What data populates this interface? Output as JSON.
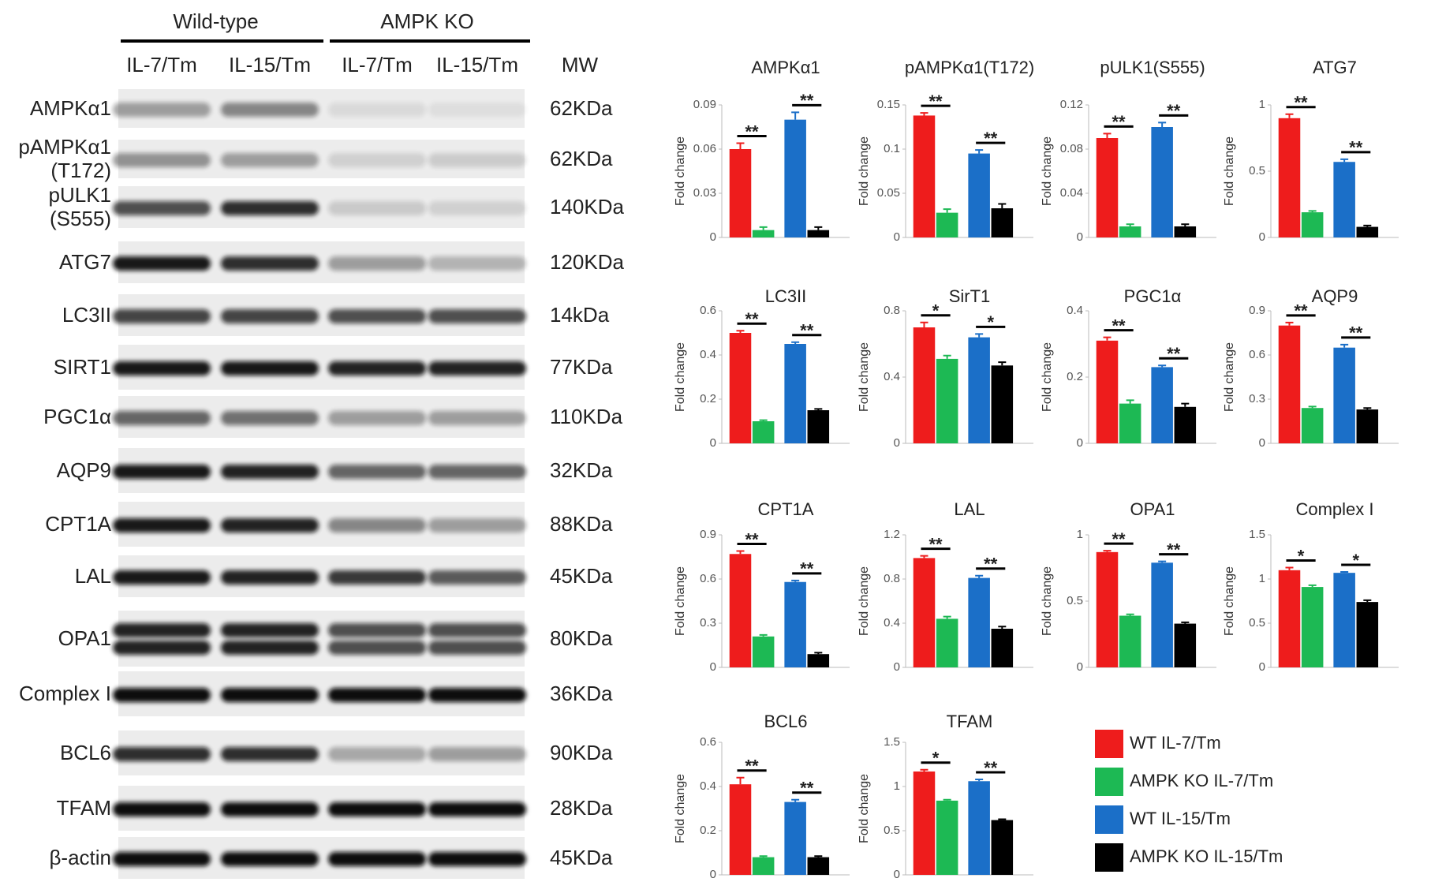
{
  "blot": {
    "groups": [
      "Wild-type",
      "AMPK KO"
    ],
    "lanes": [
      "IL-7/Tm",
      "IL-15/Tm",
      "IL-7/Tm",
      "IL-15/Tm"
    ],
    "mw_header": "MW",
    "rows": [
      {
        "label": [
          "AMPKα1"
        ],
        "mw": "62KDa"
      },
      {
        "label": [
          "pAMPKα1",
          "(T172)"
        ],
        "mw": "62KDa"
      },
      {
        "label": [
          "pULK1",
          "(S555)"
        ],
        "mw": "140KDa"
      },
      {
        "label": [
          "ATG7"
        ],
        "mw": "120KDa"
      },
      {
        "label": [
          "LC3II"
        ],
        "mw": "14kDa"
      },
      {
        "label": [
          "SIRT1"
        ],
        "mw": "77KDa"
      },
      {
        "label": [
          "PGC1α"
        ],
        "mw": "110KDa"
      },
      {
        "label": [
          "AQP9"
        ],
        "mw": "32KDa"
      },
      {
        "label": [
          "CPT1A"
        ],
        "mw": "88KDa"
      },
      {
        "label": [
          "LAL"
        ],
        "mw": "45KDa"
      },
      {
        "label": [
          "OPA1"
        ],
        "mw": "80KDa"
      },
      {
        "label": [
          "Complex I"
        ],
        "mw": "36KDa"
      },
      {
        "label": [
          "BCL6"
        ],
        "mw": "90KDa"
      },
      {
        "label": [
          "TFAM"
        ],
        "mw": "28KDa"
      },
      {
        "label": [
          "β-actin"
        ],
        "mw": "45KDa"
      }
    ]
  },
  "legend": {
    "items": [
      {
        "name": "WT IL-7/Tm",
        "color": "#ee1c1c"
      },
      {
        "name": "AMPK KO IL-7/Tm",
        "color": "#1db954"
      },
      {
        "name": "WT IL-15/Tm",
        "color": "#1b6fc8"
      },
      {
        "name": "AMPK KO IL-15/Tm",
        "color": "#000000"
      }
    ]
  },
  "chart_data": [
    {
      "type": "bar",
      "title": "AMPKα1",
      "ylabel": "Fold change",
      "ylim": [
        0,
        0.09
      ],
      "yticks": [
        0,
        0.03,
        0.06,
        0.09
      ],
      "values": [
        0.06,
        0.005,
        0.08,
        0.005
      ],
      "errors": [
        0.004,
        0.002,
        0.005,
        0.002
      ],
      "significance": [
        "**",
        "**"
      ]
    },
    {
      "type": "bar",
      "title": "pAMPKα1(T172)",
      "ylabel": "Fold change",
      "ylim": [
        0,
        0.15
      ],
      "yticks": [
        0,
        0.05,
        0.1,
        0.15
      ],
      "values": [
        0.138,
        0.028,
        0.095,
        0.033
      ],
      "errors": [
        0.003,
        0.004,
        0.004,
        0.005
      ],
      "significance": [
        "**",
        "**"
      ]
    },
    {
      "type": "bar",
      "title": "pULK1(S555)",
      "ylabel": "Fold change",
      "ylim": [
        0,
        0.12
      ],
      "yticks": [
        0,
        0.04,
        0.08,
        0.12
      ],
      "values": [
        0.09,
        0.01,
        0.1,
        0.01
      ],
      "errors": [
        0.004,
        0.002,
        0.004,
        0.002
      ],
      "significance": [
        "**",
        "**"
      ]
    },
    {
      "type": "bar",
      "title": "ATG7",
      "ylabel": "Fold change",
      "ylim": [
        0,
        1
      ],
      "yticks": [
        0,
        0.5,
        1
      ],
      "values": [
        0.9,
        0.19,
        0.57,
        0.08
      ],
      "errors": [
        0.03,
        0.01,
        0.02,
        0.01
      ],
      "significance": [
        "**",
        "**"
      ]
    },
    {
      "type": "bar",
      "title": "LC3II",
      "ylabel": "Fold change",
      "ylim": [
        0,
        0.6
      ],
      "yticks": [
        0,
        0.2,
        0.4,
        0.6
      ],
      "values": [
        0.5,
        0.1,
        0.45,
        0.15
      ],
      "errors": [
        0.01,
        0.005,
        0.008,
        0.006
      ],
      "significance": [
        "**",
        "**"
      ]
    },
    {
      "type": "bar",
      "title": "SirT1",
      "ylabel": "Fold change",
      "ylim": [
        0,
        0.8
      ],
      "yticks": [
        0,
        0.4,
        0.8
      ],
      "values": [
        0.7,
        0.51,
        0.64,
        0.47
      ],
      "errors": [
        0.03,
        0.02,
        0.02,
        0.02
      ],
      "significance": [
        "*",
        "*"
      ]
    },
    {
      "type": "bar",
      "title": "PGC1α",
      "ylabel": "Fold change",
      "ylim": [
        0,
        0.4
      ],
      "yticks": [
        0,
        0.2,
        0.4
      ],
      "values": [
        0.31,
        0.12,
        0.23,
        0.11
      ],
      "errors": [
        0.01,
        0.01,
        0.005,
        0.01
      ],
      "significance": [
        "**",
        "**"
      ]
    },
    {
      "type": "bar",
      "title": "AQP9",
      "ylabel": "Fold change",
      "ylim": [
        0,
        0.9
      ],
      "yticks": [
        0,
        0.3,
        0.6,
        0.9
      ],
      "values": [
        0.8,
        0.24,
        0.65,
        0.23
      ],
      "errors": [
        0.02,
        0.01,
        0.02,
        0.01
      ],
      "significance": [
        "**",
        "**"
      ]
    },
    {
      "type": "bar",
      "title": "CPT1A",
      "ylabel": "Fold change",
      "ylim": [
        0,
        0.9
      ],
      "yticks": [
        0,
        0.3,
        0.6,
        0.9
      ],
      "values": [
        0.77,
        0.21,
        0.58,
        0.09
      ],
      "errors": [
        0.02,
        0.01,
        0.01,
        0.01
      ],
      "significance": [
        "**",
        "**"
      ]
    },
    {
      "type": "bar",
      "title": "LAL",
      "ylabel": "Fold change",
      "ylim": [
        0,
        1.2
      ],
      "yticks": [
        0,
        0.4,
        0.8,
        1.2
      ],
      "values": [
        0.99,
        0.44,
        0.81,
        0.35
      ],
      "errors": [
        0.02,
        0.02,
        0.02,
        0.02
      ],
      "significance": [
        "**",
        "**"
      ]
    },
    {
      "type": "bar",
      "title": "OPA1",
      "ylabel": "Fold change",
      "ylim": [
        0,
        1
      ],
      "yticks": [
        0,
        0.5,
        1
      ],
      "values": [
        0.87,
        0.39,
        0.79,
        0.33
      ],
      "errors": [
        0.01,
        0.01,
        0.01,
        0.01
      ],
      "significance": [
        "**",
        "**"
      ]
    },
    {
      "type": "bar",
      "title": "Complex I",
      "ylabel": "Fold change",
      "ylim": [
        0,
        1.5
      ],
      "yticks": [
        0,
        0.5,
        1,
        1.5
      ],
      "values": [
        1.1,
        0.91,
        1.07,
        0.74
      ],
      "errors": [
        0.03,
        0.02,
        0.01,
        0.02
      ],
      "significance": [
        "*",
        "*"
      ]
    },
    {
      "type": "bar",
      "title": "BCL6",
      "ylabel": "Fold change",
      "ylim": [
        0,
        0.6
      ],
      "yticks": [
        0,
        0.2,
        0.4,
        0.6
      ],
      "values": [
        0.41,
        0.08,
        0.33,
        0.08
      ],
      "errors": [
        0.03,
        0.005,
        0.01,
        0.005
      ],
      "significance": [
        "**",
        "**"
      ]
    },
    {
      "type": "bar",
      "title": "TFAM",
      "ylabel": "Fold change",
      "ylim": [
        0,
        1.5
      ],
      "yticks": [
        0,
        0.5,
        1,
        1.5
      ],
      "values": [
        1.17,
        0.84,
        1.06,
        0.62
      ],
      "errors": [
        0.02,
        0.01,
        0.02,
        0.01
      ],
      "significance": [
        "*",
        "**"
      ]
    }
  ]
}
